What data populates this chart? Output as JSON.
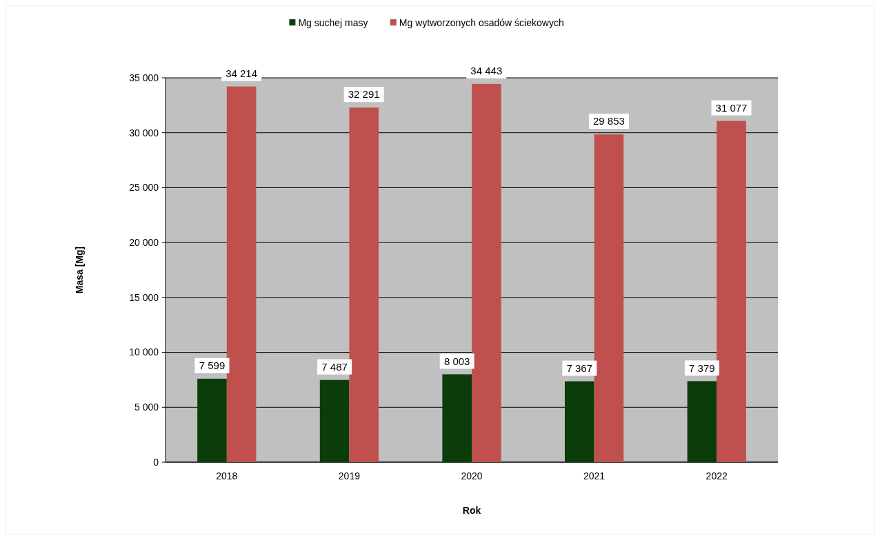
{
  "chart_data": {
    "type": "bar",
    "xlabel": "Rok",
    "ylabel": "Masa [Mg]",
    "categories": [
      "2018",
      "2019",
      "2020",
      "2021",
      "2022"
    ],
    "series": [
      {
        "name": "Mg suchej masy",
        "color": "#0b3d0b",
        "values": [
          7599,
          7487,
          8003,
          7367,
          7379
        ],
        "value_labels": [
          "7 599",
          "7 487",
          "8 003",
          "7 367",
          "7 379"
        ]
      },
      {
        "name": "Mg wytworzonych osadów ściekowych",
        "color": "#c0504d",
        "values": [
          34214,
          32291,
          34443,
          29853,
          31077
        ],
        "value_labels": [
          "34 214",
          "32 291",
          "34 443",
          "29 853",
          "31 077"
        ]
      }
    ],
    "ylim": [
      0,
      35000
    ],
    "yticks": [
      0,
      {
        "value": 5000,
        "label": "5 000"
      },
      {
        "value": 10000,
        "label": "10 000"
      },
      {
        "value": 15000,
        "label": "15 000"
      },
      {
        "value": 20000,
        "label": "20 000"
      },
      {
        "value": 25000,
        "label": "25 000"
      },
      {
        "value": 30000,
        "label": "30 000"
      },
      {
        "value": 35000,
        "label": "35 000"
      }
    ],
    "grid": "y",
    "legend": "top"
  }
}
